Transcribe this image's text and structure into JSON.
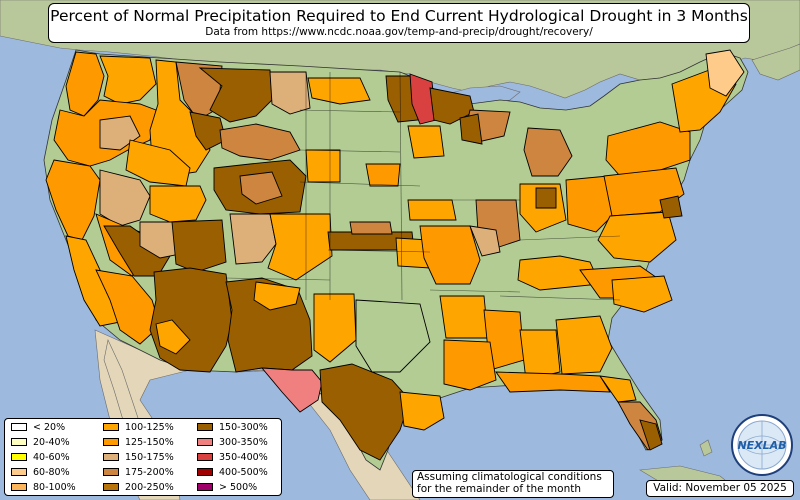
{
  "title": "Percent of Normal Precipitation Required to End Current Hydrological Drought in 3 Months",
  "subtitle": "Data from https://www.ncdc.noaa.gov/temp-and-precip/drought/recovery/",
  "legend": [
    {
      "label": "< 20%",
      "color": "#ffffff"
    },
    {
      "label": "20-40%",
      "color": "#ffffc0"
    },
    {
      "label": "40-60%",
      "color": "#ffff00"
    },
    {
      "label": "60-80%",
      "color": "#fecb8a"
    },
    {
      "label": "80-100%",
      "color": "#fdb55c"
    },
    {
      "label": "100-125%",
      "color": "#ffa500"
    },
    {
      "label": "125-150%",
      "color": "#ff9900"
    },
    {
      "label": "150-175%",
      "color": "#ddb07a"
    },
    {
      "label": "175-200%",
      "color": "#cd853f"
    },
    {
      "label": "200-250%",
      "color": "#b8740b"
    },
    {
      "label": "150-300%",
      "color": "#9a5f00"
    },
    {
      "label": "300-350%",
      "color": "#f08080"
    },
    {
      "label": "350-400%",
      "color": "#d94040"
    },
    {
      "label": "400-500%",
      "color": "#a00000"
    },
    {
      "label": "> 500%",
      "color": "#a0006a"
    }
  ],
  "note": {
    "line1": "Assuming climatological conditions",
    "line2": "for the remainder of the month"
  },
  "valid": "Valid: November 05 2025",
  "logo": {
    "text": "NEXLAB",
    "icon": "nexlab-logo-icon"
  },
  "colors": {
    "ocean": "#9db9de",
    "land_lowland": "#a8c88a",
    "land_upland": "#c8c49a",
    "land_desert": "#e8dcc0",
    "lake": "#9db9de",
    "state_border": "#000000"
  }
}
